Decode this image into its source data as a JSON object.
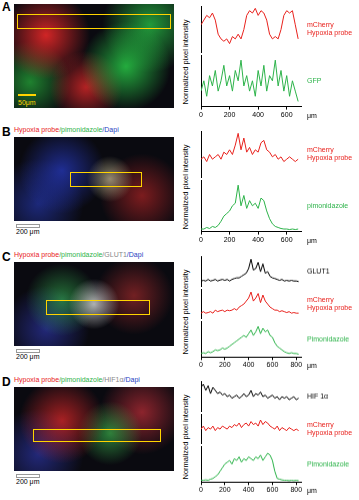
{
  "chart_data": [
    {
      "panel": "A",
      "type": "line",
      "scale_bar": {
        "text": "50μm",
        "color": "#ffd400"
      },
      "ylabel": "Normalized pixel intensity",
      "xlabel": "μm",
      "x": [
        0,
        20,
        40,
        60,
        80,
        100,
        120,
        140,
        160,
        180,
        200,
        220,
        240,
        260,
        280,
        300,
        320,
        340,
        360,
        380,
        400,
        420,
        440,
        460,
        480,
        500,
        520,
        540,
        560,
        580,
        600,
        620,
        640,
        660,
        680
      ],
      "xlim": [
        0,
        700
      ],
      "xticks": [
        0,
        200,
        400,
        600
      ],
      "ylim": [
        0,
        1
      ],
      "tick_labels": "x",
      "legend": "right",
      "series": [
        {
          "name": "mCherry Hypoxia probe",
          "color": "#e8211c",
          "values": [
            0.6,
            0.7,
            0.8,
            0.75,
            0.85,
            0.7,
            0.4,
            0.3,
            0.25,
            0.3,
            0.2,
            0.35,
            0.3,
            0.4,
            0.3,
            0.5,
            0.8,
            0.9,
            0.85,
            0.95,
            0.8,
            0.9,
            0.85,
            0.7,
            0.4,
            0.3,
            0.35,
            0.3,
            0.5,
            0.8,
            0.9,
            0.85,
            0.9,
            0.6,
            0.3
          ]
        },
        {
          "name": "GFP",
          "color": "#2db34a",
          "values": [
            0.3,
            0.5,
            0.2,
            0.6,
            0.4,
            0.7,
            0.3,
            0.5,
            0.8,
            0.4,
            0.6,
            0.3,
            0.7,
            0.5,
            0.9,
            0.4,
            0.6,
            0.3,
            0.5,
            0.2,
            0.7,
            0.4,
            0.8,
            0.3,
            0.6,
            0.5,
            0.9,
            0.4,
            0.7,
            0.3,
            0.6,
            0.2,
            0.5,
            0.3,
            0.1
          ]
        }
      ]
    },
    {
      "panel": "B",
      "type": "line",
      "image_title": [
        {
          "text": "Hypoxia probe",
          "color": "#e8211c"
        },
        {
          "text": "/pimonidazole",
          "color": "#2db34a"
        },
        {
          "text": "/Dapi",
          "color": "#1f3fbf"
        }
      ],
      "scale_bar": {
        "text": "200 μm",
        "color": "#000000"
      },
      "ylabel": "Normalized pixel intensity",
      "xlabel": "μm",
      "x": [
        0,
        20,
        40,
        60,
        80,
        100,
        120,
        140,
        160,
        180,
        200,
        220,
        240,
        260,
        280,
        300,
        320,
        340,
        360,
        380,
        400,
        420,
        440,
        460,
        480,
        500,
        520,
        540,
        560,
        580,
        600,
        620,
        640,
        660,
        680
      ],
      "xlim": [
        0,
        700
      ],
      "xticks": [
        0,
        200,
        400,
        600
      ],
      "ylim": [
        0,
        1
      ],
      "tick_labels": "x",
      "legend": "right",
      "series": [
        {
          "name": "mCherry Hypoxia probe",
          "color": "#e8211c",
          "values": [
            0.4,
            0.45,
            0.35,
            0.5,
            0.4,
            0.45,
            0.5,
            0.4,
            0.55,
            0.5,
            0.6,
            0.5,
            0.7,
            0.95,
            0.6,
            0.85,
            0.55,
            0.65,
            0.5,
            0.6,
            0.55,
            0.75,
            0.8,
            0.6,
            0.55,
            0.45,
            0.5,
            0.4,
            0.45,
            0.35,
            0.4,
            0.45,
            0.4,
            0.35,
            0.4
          ]
        },
        {
          "name": "pimonidazole",
          "color": "#2db34a",
          "values": [
            0.05,
            0.05,
            0.08,
            0.06,
            0.1,
            0.08,
            0.12,
            0.2,
            0.3,
            0.35,
            0.4,
            0.5,
            0.55,
            0.9,
            0.5,
            0.7,
            0.45,
            0.6,
            0.5,
            0.55,
            0.45,
            0.65,
            0.6,
            0.4,
            0.25,
            0.15,
            0.1,
            0.08,
            0.06,
            0.05,
            0.05,
            0.04,
            0.05,
            0.04,
            0.05
          ]
        }
      ]
    },
    {
      "panel": "C",
      "type": "line",
      "image_title": [
        {
          "text": "Hypoxia probe",
          "color": "#e8211c"
        },
        {
          "text": "/pimonidazole",
          "color": "#2db34a"
        },
        {
          "text": "/GLUT1",
          "color": "#888888"
        },
        {
          "text": "/Dapi",
          "color": "#1f3fbf"
        }
      ],
      "scale_bar": {
        "text": "200 μm",
        "color": "#000000"
      },
      "ylabel": "Normalized pixel intensity",
      "xlabel": "μm",
      "x": [
        0,
        20,
        40,
        60,
        80,
        100,
        120,
        140,
        160,
        180,
        200,
        220,
        240,
        260,
        280,
        300,
        320,
        340,
        360,
        380,
        400,
        420,
        440,
        460,
        480,
        500,
        520,
        540,
        560,
        580,
        600,
        620,
        640,
        660,
        680,
        700,
        720,
        740,
        760,
        780,
        800,
        820
      ],
      "xlim": [
        0,
        840
      ],
      "xticks": [
        0,
        200,
        400,
        600,
        800
      ],
      "ylim": [
        0,
        1
      ],
      "tick_labels": "x",
      "legend": "right",
      "series": [
        {
          "name": "GLUT1",
          "color": "#000000",
          "values": [
            0.2,
            0.22,
            0.2,
            0.25,
            0.2,
            0.22,
            0.25,
            0.2,
            0.23,
            0.25,
            0.22,
            0.25,
            0.2,
            0.25,
            0.28,
            0.3,
            0.3,
            0.35,
            0.4,
            0.45,
            0.6,
            0.9,
            0.55,
            0.6,
            0.8,
            0.5,
            0.75,
            0.45,
            0.5,
            0.35,
            0.3,
            0.28,
            0.25,
            0.22,
            0.25,
            0.2,
            0.22,
            0.2,
            0.22,
            0.2,
            0.2,
            0.18
          ]
        },
        {
          "name": "mCherry Hypoxia probe",
          "color": "#e8211c",
          "values": [
            0.2,
            0.25,
            0.2,
            0.22,
            0.25,
            0.2,
            0.3,
            0.25,
            0.28,
            0.3,
            0.25,
            0.3,
            0.28,
            0.3,
            0.35,
            0.3,
            0.4,
            0.45,
            0.5,
            0.6,
            0.7,
            0.9,
            0.6,
            0.7,
            0.85,
            0.55,
            0.8,
            0.6,
            0.5,
            0.4,
            0.35,
            0.3,
            0.3,
            0.25,
            0.28,
            0.25,
            0.22,
            0.25,
            0.2,
            0.22,
            0.2,
            0.2
          ]
        },
        {
          "name": "Pimonidazole",
          "color": "#2db34a",
          "values": [
            0.1,
            0.12,
            0.1,
            0.15,
            0.12,
            0.15,
            0.2,
            0.18,
            0.2,
            0.25,
            0.22,
            0.25,
            0.3,
            0.35,
            0.4,
            0.45,
            0.5,
            0.55,
            0.6,
            0.55,
            0.65,
            0.75,
            0.6,
            0.7,
            0.85,
            0.65,
            0.8,
            0.7,
            0.75,
            0.6,
            0.55,
            0.4,
            0.3,
            0.25,
            0.2,
            0.15,
            0.12,
            0.1,
            0.12,
            0.1,
            0.1,
            0.08
          ]
        }
      ]
    },
    {
      "panel": "D",
      "type": "line",
      "image_title": [
        {
          "text": "Hypoxia probe",
          "color": "#e8211c"
        },
        {
          "text": "/pimonidazole",
          "color": "#2db34a"
        },
        {
          "text": "/HIF1α",
          "color": "#888888"
        },
        {
          "text": "/Dapi",
          "color": "#1f3fbf"
        }
      ],
      "scale_bar": {
        "text": "200 μm",
        "color": "#000000"
      },
      "ylabel": "Normalized pixel intensity",
      "xlabel": "μm",
      "x": [
        0,
        20,
        40,
        60,
        80,
        100,
        120,
        140,
        160,
        180,
        200,
        220,
        240,
        260,
        280,
        300,
        320,
        340,
        360,
        380,
        400,
        420,
        440,
        460,
        480,
        500,
        520,
        540,
        560,
        580,
        600,
        620,
        640,
        660,
        680,
        700,
        720,
        740,
        760,
        780,
        800,
        820
      ],
      "xlim": [
        0,
        840
      ],
      "xticks": [
        0,
        200,
        400,
        600,
        800
      ],
      "ylim": [
        0,
        1
      ],
      "tick_labels": "x",
      "legend": "right",
      "series": [
        {
          "name": "HIF 1α",
          "color": "#000000",
          "values": [
            0.8,
            0.9,
            0.7,
            0.85,
            0.6,
            0.8,
            0.7,
            0.6,
            0.65,
            0.55,
            0.6,
            0.5,
            0.55,
            0.45,
            0.5,
            0.55,
            0.45,
            0.5,
            0.6,
            0.5,
            0.55,
            0.7,
            0.5,
            0.6,
            0.55,
            0.65,
            0.5,
            0.55,
            0.45,
            0.5,
            0.55,
            0.45,
            0.5,
            0.4,
            0.5,
            0.45,
            0.5,
            0.4,
            0.45,
            0.5,
            0.4,
            0.45
          ]
        },
        {
          "name": "mCherry Hypoxia probe",
          "color": "#e8211c",
          "values": [
            0.5,
            0.6,
            0.45,
            0.55,
            0.5,
            0.6,
            0.45,
            0.55,
            0.5,
            0.6,
            0.55,
            0.5,
            0.6,
            0.55,
            0.65,
            0.6,
            0.7,
            0.55,
            0.65,
            0.7,
            0.6,
            0.75,
            0.65,
            0.7,
            0.6,
            0.8,
            0.65,
            0.75,
            0.7,
            0.6,
            0.55,
            0.5,
            0.6,
            0.45,
            0.55,
            0.5,
            0.45,
            0.55,
            0.5,
            0.45,
            0.5,
            0.45
          ]
        },
        {
          "name": "Pimonidazole",
          "color": "#2db34a",
          "values": [
            0.05,
            0.05,
            0.06,
            0.05,
            0.08,
            0.1,
            0.15,
            0.2,
            0.3,
            0.4,
            0.5,
            0.55,
            0.6,
            0.5,
            0.65,
            0.6,
            0.7,
            0.55,
            0.65,
            0.6,
            0.7,
            0.65,
            0.6,
            0.7,
            0.65,
            0.75,
            0.6,
            0.7,
            0.8,
            0.75,
            0.6,
            0.3,
            0.1,
            0.08,
            0.06,
            0.05,
            0.05,
            0.04,
            0.05,
            0.04,
            0.05,
            0.04
          ]
        }
      ]
    }
  ]
}
